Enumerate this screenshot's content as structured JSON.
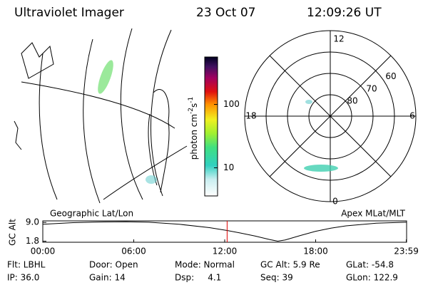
{
  "header": {
    "title": "Ultraviolet Imager",
    "date": "23 Oct 07",
    "time": "12:09:26 UT"
  },
  "left_panel": {
    "label": "Geographic Lat/Lon"
  },
  "colorbar": {
    "label": {
      "text": "photon cm",
      "exp1": "-2",
      "unit2": "s",
      "exp2": "-1"
    },
    "scale": "log",
    "range": [
      3.6,
      560
    ],
    "ticks": [
      100,
      10
    ]
  },
  "polar_panel": {
    "label": "Apex MLat/MLT",
    "mlt_labels": {
      "top": "12",
      "left": "18",
      "right": "6",
      "bottom": "0"
    },
    "lat_range": [
      90,
      50
    ],
    "lat_rings": [
      80,
      70,
      60
    ]
  },
  "altitude_plot": {
    "ylabel": "GC Alt",
    "ylim": [
      1.4,
      9.6
    ],
    "yticks": [
      {
        "value": 9,
        "label": "9.0"
      },
      {
        "value": 1.8,
        "label": "1.8"
      }
    ],
    "xlim": [
      0,
      24
    ],
    "xticks": [
      {
        "value": 0,
        "label": "00:00"
      },
      {
        "value": 6,
        "label": "06:00"
      },
      {
        "value": 12,
        "label": "12:00"
      },
      {
        "value": 18,
        "label": "18:00"
      },
      {
        "value": 23.98,
        "label": "23:59"
      }
    ],
    "x": [
      0,
      2,
      4,
      5.5,
      7,
      9,
      11,
      12.16,
      13,
      14,
      15,
      15.5,
      16,
      17,
      18,
      19,
      20,
      22,
      23.98
    ],
    "values": [
      8.3,
      8.9,
      9.2,
      9.25,
      9.1,
      8.3,
      7.0,
      5.9,
      5.0,
      3.8,
      2.4,
      1.8,
      2.3,
      4.0,
      5.6,
      6.8,
      7.7,
      8.7,
      9.1
    ],
    "current_time": 12.16,
    "marker_color": "#e00000"
  },
  "info": [
    [
      "Flt: LBHL",
      "IP: 36.0"
    ],
    [
      "Door: Open",
      "Gain: 14"
    ],
    [
      "Mode: Normal",
      "Dsp:     4.1"
    ],
    [
      "GC Alt: 5.9 Re",
      "Seq: 39"
    ],
    [
      "GLat: -54.8",
      "GLon: 122.9"
    ]
  ]
}
